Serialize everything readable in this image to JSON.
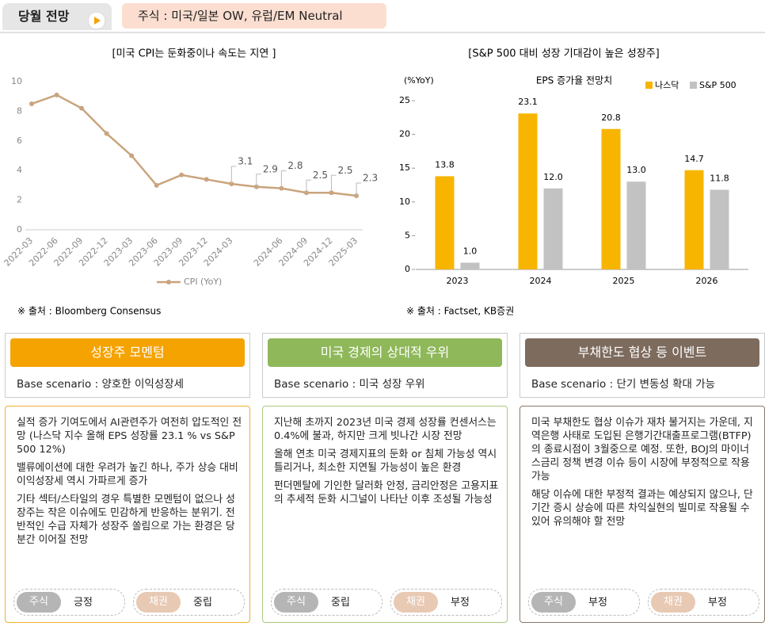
{
  "header": {
    "title": "당월 전망",
    "badge": "주식 : 미국/일본 OW, 유럽/EM Neutral"
  },
  "chart_data": [
    {
      "type": "line",
      "title": "[미국 CPI는 둔화중이나 속도는 지연 ]",
      "categories": [
        "2022-03",
        "2022-06",
        "2022-09",
        "2022-12",
        "2023-03",
        "2023-06",
        "2023-09",
        "2023-12",
        "2024-03",
        null,
        "2024-06",
        "2024-09",
        "2024-12",
        "2025-03"
      ],
      "series": [
        {
          "name": "CPI (YoY)",
          "color": "#c9a47e",
          "values": [
            8.5,
            9.1,
            8.2,
            6.5,
            5.0,
            3.0,
            3.7,
            3.4,
            3.1,
            2.9,
            2.8,
            2.5,
            2.5,
            2.3
          ],
          "value_labels": [
            null,
            null,
            null,
            null,
            null,
            null,
            null,
            null,
            "3.1",
            "2.9",
            "2.8",
            "2.5",
            "2.5",
            "2.3"
          ]
        }
      ],
      "ylim": [
        0,
        10
      ],
      "yticks": [
        0,
        2,
        4,
        6,
        8,
        10
      ],
      "source": "※ 출처 : Bloomberg Consensus"
    },
    {
      "type": "bar",
      "title": "[S&P 500 대비 성장 기대감이 높은 성장주]",
      "subtitle": "EPS 증가율 전망치",
      "y_label": "(%YoY)",
      "categories": [
        "2023",
        "2024",
        "2025",
        "2026"
      ],
      "series": [
        {
          "name": "나스닥",
          "color": "#f7b500",
          "values": [
            13.8,
            23.1,
            20.8,
            14.7
          ],
          "value_labels": [
            "13.8",
            "23.1",
            "20.8",
            "14.7"
          ]
        },
        {
          "name": "S&P 500",
          "color": "#c2c2c2",
          "values": [
            1.0,
            12.0,
            13.0,
            11.8
          ],
          "value_labels": [
            "1.0",
            "12.0",
            "13.0",
            "11.8"
          ]
        }
      ],
      "ylim": [
        0,
        25
      ],
      "yticks": [
        0,
        5,
        10,
        15,
        20,
        25
      ],
      "legend": "top-right",
      "source": "※ 출처 : Factset, KB증권"
    }
  ],
  "panels": [
    {
      "title": "성장주 모멘텀",
      "scenario": "Base scenario : 양호한 이익성장세",
      "paragraphs": [
        "실적 증가 기여도에서 AI관련주가 여전히 압도적인 전망 (나스닥 지수 올해 EPS 성장률 23.1 % vs S&P 500 12%)",
        "밸류에이션에 대한 우려가 높긴 하나, 주가 상승 대비 이익성장세 역시 가파르게 증가",
        "기타 섹터/스타일의 경우 특별한 모멘텀이 없으나 성장주는 작은 이슈에도 민감하게 반응하는 분위기. 전반적인 수급 자체가 성장주 쏠림으로 가는 환경은 당분간 이어질 전망"
      ],
      "tags": [
        {
          "label": "주식",
          "value": "긍정"
        },
        {
          "label": "채권",
          "value": "중립"
        }
      ]
    },
    {
      "title": "미국 경제의 상대적 우위",
      "scenario": "Base scenario : 미국 성장 우위",
      "paragraphs": [
        "지난해 초까지 2023년 미국 경제 성장률 컨센서스는 0.4%에 불과, 하지만 크게 빗나간 시장 전망",
        "올해 연초 미국 경제지표의 둔화 or 침체 가능성 역시 틀리거나, 최소한 지연될 가능성이 높은 환경",
        "펀더멘탈에 기인한 달러화 안정, 금리안정은 고용지표의 추세적 둔화 시그널이 나타난 이후 조성될 가능성"
      ],
      "tags": [
        {
          "label": "주식",
          "value": "중립"
        },
        {
          "label": "채권",
          "value": "부정"
        }
      ]
    },
    {
      "title": "부채한도 협상 등 이벤트",
      "scenario": "Base scenario : 단기 변동성 확대 가능",
      "paragraphs": [
        "미국 부채한도 협상 이슈가 재차 불거지는 가운데, 지역은행 사태로 도입된 은행기간대출프로그램(BTFP)의 종료시점이 3월중으로 예정. 또한, BOJ의 마이너스금리 정책 변경 이슈 등이 시장에 부정적으로 작용 가능",
        "해당 이슈에 대한 부정적 결과는 예상되지 않으나, 단기간 증시 상승에 따른 차익실현의 빌미로 작용될 수 있어 유의해야 할 전망"
      ],
      "tags": [
        {
          "label": "주식",
          "value": "부정"
        },
        {
          "label": "채권",
          "value": "부정"
        }
      ]
    }
  ]
}
